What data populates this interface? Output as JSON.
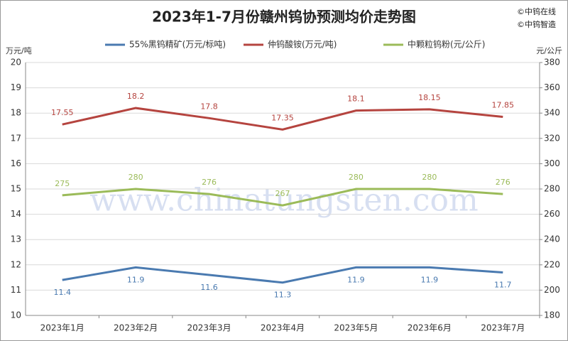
{
  "chart_data": {
    "type": "line",
    "title": "2023年1-7月份赣州钨协预测均价走势图",
    "credits": [
      "©中钨在线",
      "©中钨智造"
    ],
    "watermark": "www.chinatungsten.com",
    "ylabel": "万元/吨",
    "y2label": "元/公斤",
    "categories": [
      "2023年1月",
      "2023年2月",
      "2023年3月",
      "2023年4月",
      "2023年5月",
      "2023年6月",
      "2023年7月"
    ],
    "series": [
      {
        "name": "55%黑钨精矿(万元/标吨)",
        "color": "#4a7ab0",
        "axis": "y",
        "values": [
          11.4,
          11.9,
          11.6,
          11.3,
          11.9,
          11.9,
          11.7
        ]
      },
      {
        "name": "仲钨酸铵(万元/吨)",
        "color": "#b5443f",
        "axis": "y",
        "values": [
          17.55,
          18.2,
          17.8,
          17.35,
          18.1,
          18.15,
          17.85
        ]
      },
      {
        "name": "中颗粒钨粉(元/公斤)",
        "color": "#9bbb59",
        "axis": "y2",
        "values": [
          275,
          280,
          276,
          267,
          280,
          280,
          276
        ]
      }
    ],
    "ylim": [
      10,
      20
    ],
    "yticks": [
      10,
      11,
      12,
      13,
      14,
      15,
      16,
      17,
      18,
      19,
      20
    ],
    "y2lim": [
      180,
      380
    ],
    "y2ticks": [
      180,
      200,
      220,
      240,
      260,
      280,
      300,
      320,
      340,
      360,
      380
    ],
    "grid": true
  }
}
